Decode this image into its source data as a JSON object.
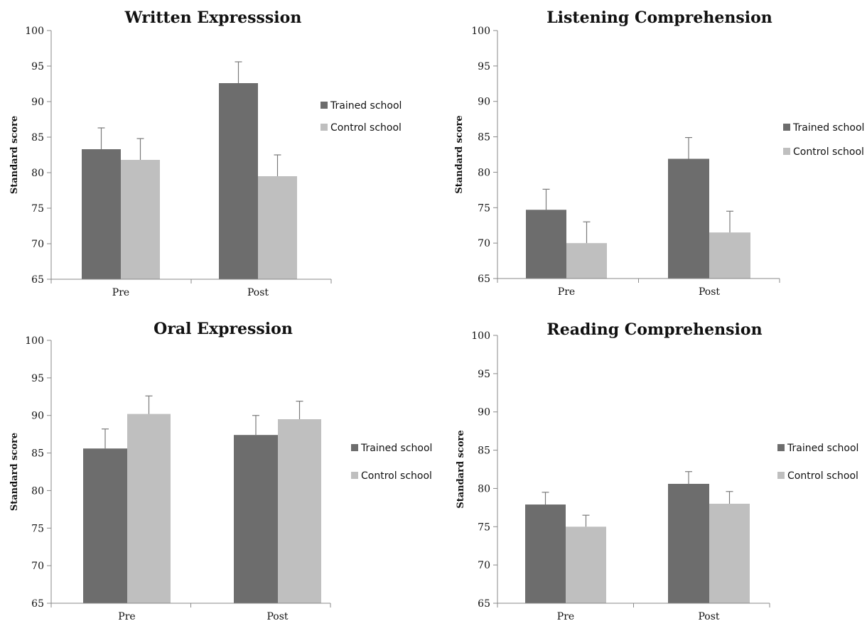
{
  "chart_data": [
    {
      "type": "bar",
      "title": "Written Expresssion",
      "ylabel": "Standard score",
      "ylim": [
        65,
        100
      ],
      "yticks": [
        65,
        70,
        75,
        80,
        85,
        90,
        95,
        100
      ],
      "categories": [
        "Pre",
        "Post"
      ],
      "series": [
        {
          "name": "Trained school",
          "values": [
            83.3,
            92.6
          ],
          "errors": [
            3.0,
            3.0
          ],
          "color": "#6d6d6d"
        },
        {
          "name": "Control school",
          "values": [
            81.8,
            79.5
          ],
          "errors": [
            3.0,
            3.0
          ],
          "color": "#bfbfbf"
        }
      ],
      "legend": "right"
    },
    {
      "type": "bar",
      "title": "Listening Comprehension",
      "ylabel": "Standard score",
      "ylim": [
        65,
        100
      ],
      "yticks": [
        65,
        70,
        75,
        80,
        85,
        90,
        95,
        100
      ],
      "categories": [
        "Pre",
        "Post"
      ],
      "series": [
        {
          "name": "Trained school",
          "values": [
            74.7,
            81.9
          ],
          "errors": [
            2.9,
            3.0
          ],
          "color": "#6d6d6d"
        },
        {
          "name": "Control school",
          "values": [
            70.0,
            71.5
          ],
          "errors": [
            3.0,
            3.0
          ],
          "color": "#bfbfbf"
        }
      ],
      "legend": "right"
    },
    {
      "type": "bar",
      "title": "Oral Expression",
      "ylabel": "Standard score",
      "ylim": [
        65,
        100
      ],
      "yticks": [
        65,
        70,
        75,
        80,
        85,
        90,
        95,
        100
      ],
      "categories": [
        "Pre",
        "Post"
      ],
      "series": [
        {
          "name": "Trained school",
          "values": [
            85.6,
            87.4
          ],
          "errors": [
            2.6,
            2.6
          ],
          "color": "#6d6d6d"
        },
        {
          "name": "Control school",
          "values": [
            90.2,
            89.5
          ],
          "errors": [
            2.4,
            2.4
          ],
          "color": "#bfbfbf"
        }
      ],
      "legend": "right"
    },
    {
      "type": "bar",
      "title": "Reading Comprehension",
      "ylabel": "Standard score",
      "ylim": [
        65,
        100
      ],
      "yticks": [
        65,
        70,
        75,
        80,
        85,
        90,
        95,
        100
      ],
      "categories": [
        "Pre",
        "Post"
      ],
      "series": [
        {
          "name": "Trained school",
          "values": [
            77.9,
            80.6
          ],
          "errors": [
            1.6,
            1.6
          ],
          "color": "#6d6d6d"
        },
        {
          "name": "Control school",
          "values": [
            75.0,
            78.0
          ],
          "errors": [
            1.5,
            1.6
          ],
          "color": "#bfbfbf"
        }
      ],
      "legend": "right"
    }
  ]
}
